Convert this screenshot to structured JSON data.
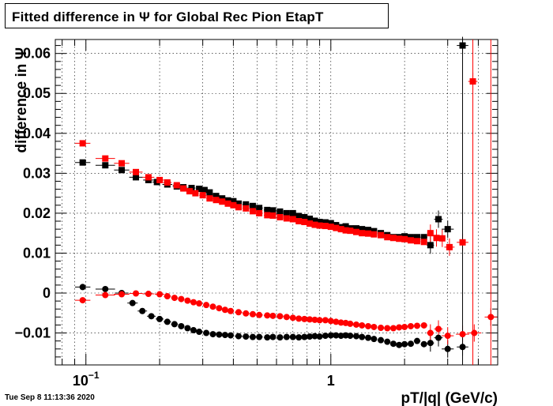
{
  "title": "Fitted difference in  Ψ  for Global Rec Pion EtapT",
  "footer": "Tue Sep  8 11:13:36 2020",
  "chart_data": {
    "type": "scatter",
    "title": "Fitted difference in  Ψ  for Global Rec Pion EtapT",
    "xlabel": "pT/|q| (GeV/c)",
    "ylabel": "difference in Ψ",
    "xscale": "log",
    "xlim": [
      0.075,
      4.8
    ],
    "ylim": [
      -0.018,
      0.0635
    ],
    "y_ticks": [
      {
        "v": -0.01,
        "label": "−0.01"
      },
      {
        "v": 0,
        "label": "0"
      },
      {
        "v": 0.01,
        "label": "0.01"
      },
      {
        "v": 0.02,
        "label": "0.02"
      },
      {
        "v": 0.03,
        "label": "0.03"
      },
      {
        "v": 0.04,
        "label": "0.04"
      },
      {
        "v": 0.05,
        "label": "0.05"
      },
      {
        "v": 0.06,
        "label": "0.06"
      }
    ],
    "x_ticks": [
      {
        "v": 0.1,
        "label": "10",
        "sup": "−1"
      },
      {
        "v": 1,
        "label": "1",
        "sup": ""
      }
    ],
    "grid": true,
    "legend": "none",
    "series": [
      {
        "color": "#000000",
        "marker": "square",
        "points": [
          [
            0.097,
            0.0327
          ],
          [
            0.12,
            0.032
          ],
          [
            0.14,
            0.0308
          ],
          [
            0.16,
            0.029
          ],
          [
            0.18,
            0.0283
          ],
          [
            0.195,
            0.0278
          ],
          [
            0.215,
            0.0272
          ],
          [
            0.235,
            0.0267
          ],
          [
            0.25,
            0.0265
          ],
          [
            0.27,
            0.0263
          ],
          [
            0.29,
            0.0261
          ],
          [
            0.305,
            0.0258
          ],
          [
            0.32,
            0.0252
          ],
          [
            0.34,
            0.0243
          ],
          [
            0.36,
            0.0237
          ],
          [
            0.38,
            0.0232
          ],
          [
            0.4,
            0.023
          ],
          [
            0.42,
            0.0224
          ],
          [
            0.45,
            0.0222
          ],
          [
            0.48,
            0.0218
          ],
          [
            0.51,
            0.0213
          ],
          [
            0.55,
            0.0208
          ],
          [
            0.58,
            0.0207
          ],
          [
            0.62,
            0.0204
          ],
          [
            0.66,
            0.02
          ],
          [
            0.7,
            0.02
          ],
          [
            0.74,
            0.0193
          ],
          [
            0.78,
            0.019
          ],
          [
            0.82,
            0.0186
          ],
          [
            0.86,
            0.0181
          ],
          [
            0.9,
            0.0178
          ],
          [
            0.95,
            0.0177
          ],
          [
            1.0,
            0.0175
          ],
          [
            1.05,
            0.017
          ],
          [
            1.1,
            0.0165
          ],
          [
            1.15,
            0.0167
          ],
          [
            1.2,
            0.0162
          ],
          [
            1.27,
            0.0162
          ],
          [
            1.34,
            0.016
          ],
          [
            1.42,
            0.0158
          ],
          [
            1.5,
            0.0155
          ],
          [
            1.6,
            0.015
          ],
          [
            1.7,
            0.0145
          ],
          [
            1.8,
            0.014
          ],
          [
            1.9,
            0.014
          ],
          [
            2.0,
            0.0142
          ],
          [
            2.12,
            0.014
          ],
          [
            2.25,
            0.014
          ],
          [
            2.4,
            0.014
          ],
          [
            2.55,
            0.012
          ],
          [
            2.75,
            0.0185
          ],
          [
            3.0,
            0.016
          ],
          [
            3.45,
            0.062
          ]
        ]
      },
      {
        "color": "#ff0000",
        "marker": "square",
        "points": [
          [
            0.097,
            0.0375
          ],
          [
            0.12,
            0.0337
          ],
          [
            0.14,
            0.0325
          ],
          [
            0.16,
            0.0303
          ],
          [
            0.18,
            0.029
          ],
          [
            0.2,
            0.0283
          ],
          [
            0.215,
            0.0277
          ],
          [
            0.235,
            0.027
          ],
          [
            0.25,
            0.0262
          ],
          [
            0.265,
            0.0255
          ],
          [
            0.28,
            0.025
          ],
          [
            0.3,
            0.0245
          ],
          [
            0.32,
            0.0237
          ],
          [
            0.34,
            0.0233
          ],
          [
            0.36,
            0.0229
          ],
          [
            0.38,
            0.0224
          ],
          [
            0.4,
            0.022
          ],
          [
            0.42,
            0.0215
          ],
          [
            0.45,
            0.0212
          ],
          [
            0.48,
            0.0205
          ],
          [
            0.51,
            0.02
          ],
          [
            0.55,
            0.0195
          ],
          [
            0.58,
            0.0194
          ],
          [
            0.62,
            0.019
          ],
          [
            0.66,
            0.0187
          ],
          [
            0.7,
            0.0185
          ],
          [
            0.74,
            0.018
          ],
          [
            0.78,
            0.0178
          ],
          [
            0.82,
            0.0174
          ],
          [
            0.86,
            0.0171
          ],
          [
            0.9,
            0.0169
          ],
          [
            0.95,
            0.0168
          ],
          [
            1.0,
            0.0166
          ],
          [
            1.05,
            0.0163
          ],
          [
            1.1,
            0.016
          ],
          [
            1.15,
            0.0157
          ],
          [
            1.2,
            0.0156
          ],
          [
            1.27,
            0.0153
          ],
          [
            1.34,
            0.015
          ],
          [
            1.42,
            0.0149
          ],
          [
            1.5,
            0.0147
          ],
          [
            1.6,
            0.0145
          ],
          [
            1.7,
            0.014
          ],
          [
            1.8,
            0.0138
          ],
          [
            1.9,
            0.0136
          ],
          [
            2.0,
            0.0135
          ],
          [
            2.12,
            0.0132
          ],
          [
            2.25,
            0.013
          ],
          [
            2.4,
            0.0128
          ],
          [
            2.55,
            0.015
          ],
          [
            2.7,
            0.0138
          ],
          [
            2.85,
            0.0137
          ],
          [
            3.05,
            0.0115
          ],
          [
            3.45,
            0.0127
          ],
          [
            3.8,
            0.053
          ]
        ]
      },
      {
        "color": "#000000",
        "marker": "circle",
        "points": [
          [
            0.097,
            0.0015
          ],
          [
            0.12,
            0.001
          ],
          [
            0.14,
            0.0
          ],
          [
            0.155,
            -0.0025
          ],
          [
            0.17,
            -0.0045
          ],
          [
            0.185,
            -0.0058
          ],
          [
            0.2,
            -0.0065
          ],
          [
            0.215,
            -0.0072
          ],
          [
            0.23,
            -0.0078
          ],
          [
            0.245,
            -0.0083
          ],
          [
            0.26,
            -0.0088
          ],
          [
            0.275,
            -0.0093
          ],
          [
            0.29,
            -0.0097
          ],
          [
            0.31,
            -0.01
          ],
          [
            0.33,
            -0.0103
          ],
          [
            0.35,
            -0.0104
          ],
          [
            0.37,
            -0.0105
          ],
          [
            0.39,
            -0.0106
          ],
          [
            0.42,
            -0.0108
          ],
          [
            0.45,
            -0.0109
          ],
          [
            0.48,
            -0.011
          ],
          [
            0.51,
            -0.011
          ],
          [
            0.55,
            -0.0111
          ],
          [
            0.58,
            -0.011
          ],
          [
            0.62,
            -0.0111
          ],
          [
            0.66,
            -0.011
          ],
          [
            0.7,
            -0.011
          ],
          [
            0.74,
            -0.0111
          ],
          [
            0.78,
            -0.011
          ],
          [
            0.82,
            -0.0109
          ],
          [
            0.86,
            -0.0108
          ],
          [
            0.9,
            -0.0109
          ],
          [
            0.95,
            -0.0107
          ],
          [
            1.0,
            -0.0106
          ],
          [
            1.05,
            -0.0106
          ],
          [
            1.1,
            -0.0107
          ],
          [
            1.15,
            -0.0106
          ],
          [
            1.2,
            -0.0107
          ],
          [
            1.27,
            -0.0108
          ],
          [
            1.34,
            -0.011
          ],
          [
            1.42,
            -0.0112
          ],
          [
            1.5,
            -0.0115
          ],
          [
            1.6,
            -0.0118
          ],
          [
            1.7,
            -0.0122
          ],
          [
            1.8,
            -0.0127
          ],
          [
            1.9,
            -0.013
          ],
          [
            2.0,
            -0.0128
          ],
          [
            2.12,
            -0.0127
          ],
          [
            2.25,
            -0.012
          ],
          [
            2.4,
            -0.0128
          ],
          [
            2.55,
            -0.0125
          ],
          [
            2.75,
            -0.0112
          ],
          [
            3.0,
            -0.014
          ],
          [
            3.45,
            -0.0135
          ]
        ]
      },
      {
        "color": "#ff0000",
        "marker": "circle",
        "points": [
          [
            0.097,
            -0.0018
          ],
          [
            0.12,
            -0.0005
          ],
          [
            0.14,
            -0.0003
          ],
          [
            0.16,
            -0.0001
          ],
          [
            0.18,
            -0.0002
          ],
          [
            0.2,
            -0.0003
          ],
          [
            0.215,
            -0.0008
          ],
          [
            0.23,
            -0.0012
          ],
          [
            0.245,
            -0.0015
          ],
          [
            0.26,
            -0.0019
          ],
          [
            0.275,
            -0.0023
          ],
          [
            0.29,
            -0.0026
          ],
          [
            0.31,
            -0.003
          ],
          [
            0.33,
            -0.0034
          ],
          [
            0.35,
            -0.0038
          ],
          [
            0.37,
            -0.0042
          ],
          [
            0.39,
            -0.0045
          ],
          [
            0.42,
            -0.0048
          ],
          [
            0.45,
            -0.0051
          ],
          [
            0.48,
            -0.0053
          ],
          [
            0.51,
            -0.0055
          ],
          [
            0.55,
            -0.0056
          ],
          [
            0.58,
            -0.0057
          ],
          [
            0.62,
            -0.0058
          ],
          [
            0.66,
            -0.006
          ],
          [
            0.7,
            -0.0062
          ],
          [
            0.74,
            -0.0064
          ],
          [
            0.78,
            -0.0065
          ],
          [
            0.82,
            -0.0066
          ],
          [
            0.86,
            -0.0067
          ],
          [
            0.9,
            -0.0068
          ],
          [
            0.95,
            -0.0068
          ],
          [
            1.0,
            -0.007
          ],
          [
            1.05,
            -0.0072
          ],
          [
            1.1,
            -0.0074
          ],
          [
            1.15,
            -0.0075
          ],
          [
            1.2,
            -0.0077
          ],
          [
            1.27,
            -0.0079
          ],
          [
            1.34,
            -0.0081
          ],
          [
            1.42,
            -0.0083
          ],
          [
            1.5,
            -0.0085
          ],
          [
            1.6,
            -0.0087
          ],
          [
            1.7,
            -0.0088
          ],
          [
            1.8,
            -0.0088
          ],
          [
            1.9,
            -0.0086
          ],
          [
            2.0,
            -0.0085
          ],
          [
            2.12,
            -0.0083
          ],
          [
            2.25,
            -0.0082
          ],
          [
            2.4,
            -0.0081
          ],
          [
            2.55,
            -0.01
          ],
          [
            2.75,
            -0.009
          ],
          [
            3.0,
            -0.0107
          ],
          [
            3.45,
            -0.0103
          ],
          [
            3.85,
            -0.01
          ],
          [
            4.5,
            -0.006
          ]
        ]
      }
    ]
  }
}
